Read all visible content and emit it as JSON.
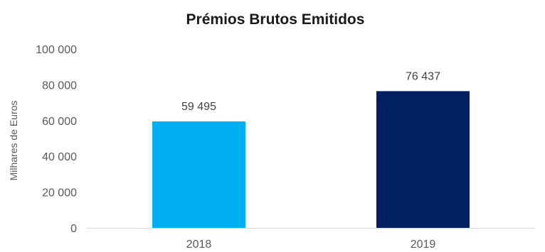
{
  "chart_data": {
    "type": "bar",
    "title": "Prémios Brutos Emitidos",
    "xlabel": "",
    "ylabel": "Milhares de Euros",
    "categories": [
      "2018",
      "2019"
    ],
    "series": [
      {
        "values": [
          59495,
          76437
        ],
        "value_labels": [
          "59 495",
          "76 437"
        ],
        "colors": [
          "#00b0f0",
          "#002060"
        ]
      }
    ],
    "ylim": [
      0,
      100000
    ],
    "yticks": [
      0,
      20000,
      40000,
      60000,
      80000,
      100000
    ],
    "ytick_labels": [
      "0",
      "20 000",
      "40 000",
      "60 000",
      "80 000",
      "100 000"
    ],
    "grid": false,
    "legend": "none"
  }
}
